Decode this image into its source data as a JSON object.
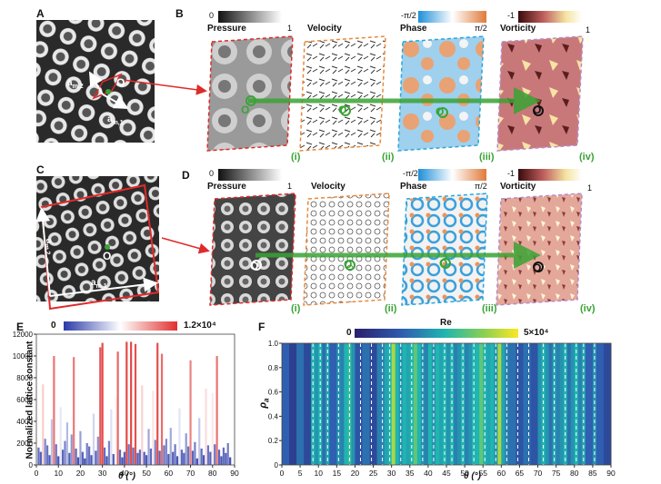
{
  "panels": {
    "A": "A",
    "B": "B",
    "C": "C",
    "D": "D",
    "E": "E",
    "F": "F"
  },
  "lattice_labels": {
    "a_m1": "a",
    "a_m2": "a",
    "sub1": "m,1",
    "sub2": "m,2",
    "origin": "O"
  },
  "field_maps": {
    "pressure": {
      "title": "Pressure",
      "min": "0",
      "max": "1"
    },
    "velocity": {
      "title": "Velocity"
    },
    "phase": {
      "title": "Phase",
      "min": "-π/2",
      "max": "π/2"
    },
    "vorticity": {
      "title": "Vorticity",
      "min": "-1",
      "max": "1"
    },
    "roman": [
      "(i)",
      "(ii)",
      "(iii)",
      "(iv)"
    ]
  },
  "colors": {
    "red": "#e02a2a",
    "green": "#3aa335",
    "orange": "#e8893a",
    "cyan": "#2aa7d8",
    "purple": "#b58bc8",
    "bar_red": "#e0302f",
    "bar_blue": "#3e52b5"
  },
  "chart_data": [
    {
      "type": "bar",
      "panel": "E",
      "ylabel": "Normalized lattice constant",
      "xlabel": "θ (°)",
      "xlim": [
        0,
        90
      ],
      "ylim": [
        0,
        12000
      ],
      "xticks": [
        "0",
        "10",
        "20",
        "30",
        "40",
        "50",
        "60",
        "70",
        "80",
        "90"
      ],
      "yticks": [
        "0",
        "2000",
        "4000",
        "6000",
        "8000",
        "10000",
        "12000"
      ],
      "colorbar": {
        "min": "0",
        "max": "1.2×10⁴"
      },
      "bars": [
        {
          "x": 1,
          "v": 1600
        },
        {
          "x": 2,
          "v": 1200
        },
        {
          "x": 3,
          "v": 7400
        },
        {
          "x": 4,
          "v": 2400
        },
        {
          "x": 5,
          "v": 1800
        },
        {
          "x": 6,
          "v": 900
        },
        {
          "x": 7,
          "v": 4200
        },
        {
          "x": 8,
          "v": 10000
        },
        {
          "x": 9,
          "v": 1900
        },
        {
          "x": 10,
          "v": 800
        },
        {
          "x": 11,
          "v": 5300
        },
        {
          "x": 12,
          "v": 1400
        },
        {
          "x": 13,
          "v": 2200
        },
        {
          "x": 14,
          "v": 3900
        },
        {
          "x": 15,
          "v": 1100
        },
        {
          "x": 16,
          "v": 2800
        },
        {
          "x": 17,
          "v": 9900
        },
        {
          "x": 18,
          "v": 1500
        },
        {
          "x": 19,
          "v": 700
        },
        {
          "x": 20,
          "v": 3100
        },
        {
          "x": 21,
          "v": 1200
        },
        {
          "x": 22,
          "v": 600
        },
        {
          "x": 23,
          "v": 2000
        },
        {
          "x": 24,
          "v": 1700
        },
        {
          "x": 25,
          "v": 900
        },
        {
          "x": 26,
          "v": 4700
        },
        {
          "x": 27,
          "v": 1300
        },
        {
          "x": 28,
          "v": 2600
        },
        {
          "x": 29,
          "v": 10800
        },
        {
          "x": 30,
          "v": 11200
        },
        {
          "x": 31,
          "v": 1600
        },
        {
          "x": 32,
          "v": 800
        },
        {
          "x": 33,
          "v": 2200
        },
        {
          "x": 34,
          "v": 5100
        },
        {
          "x": 35,
          "v": 1000
        },
        {
          "x": 36,
          "v": 6300
        },
        {
          "x": 37,
          "v": 10400
        },
        {
          "x": 38,
          "v": 1400
        },
        {
          "x": 39,
          "v": 700
        },
        {
          "x": 40,
          "v": 1200
        },
        {
          "x": 41,
          "v": 11300
        },
        {
          "x": 42,
          "v": 1900
        },
        {
          "x": 43,
          "v": 11300
        },
        {
          "x": 44,
          "v": 1600
        },
        {
          "x": 45,
          "v": 11100
        },
        {
          "x": 46,
          "v": 1100
        },
        {
          "x": 47,
          "v": 1400
        },
        {
          "x": 48,
          "v": 7300
        },
        {
          "x": 49,
          "v": 1200
        },
        {
          "x": 50,
          "v": 900
        },
        {
          "x": 51,
          "v": 3300
        },
        {
          "x": 52,
          "v": 1500
        },
        {
          "x": 53,
          "v": 6800
        },
        {
          "x": 54,
          "v": 2300
        },
        {
          "x": 55,
          "v": 11200
        },
        {
          "x": 56,
          "v": 1300
        },
        {
          "x": 57,
          "v": 10200
        },
        {
          "x": 58,
          "v": 1800
        },
        {
          "x": 59,
          "v": 2400
        },
        {
          "x": 60,
          "v": 1000
        },
        {
          "x": 61,
          "v": 3400
        },
        {
          "x": 62,
          "v": 1200
        },
        {
          "x": 63,
          "v": 1900
        },
        {
          "x": 64,
          "v": 800
        },
        {
          "x": 65,
          "v": 5200
        },
        {
          "x": 66,
          "v": 1400
        },
        {
          "x": 67,
          "v": 1100
        },
        {
          "x": 68,
          "v": 2900
        },
        {
          "x": 69,
          "v": 1700
        },
        {
          "x": 70,
          "v": 9600
        },
        {
          "x": 71,
          "v": 1300
        },
        {
          "x": 72,
          "v": 2100
        },
        {
          "x": 73,
          "v": 600
        },
        {
          "x": 74,
          "v": 4300
        },
        {
          "x": 75,
          "v": 1500
        },
        {
          "x": 76,
          "v": 900
        },
        {
          "x": 77,
          "v": 7000
        },
        {
          "x": 78,
          "v": 1800
        },
        {
          "x": 79,
          "v": 1200
        },
        {
          "x": 80,
          "v": 6600
        },
        {
          "x": 81,
          "v": 1900
        },
        {
          "x": 82,
          "v": 10000
        },
        {
          "x": 83,
          "v": 1400
        },
        {
          "x": 84,
          "v": 800
        },
        {
          "x": 85,
          "v": 1600
        },
        {
          "x": 86,
          "v": 1100
        },
        {
          "x": 87,
          "v": 2000
        },
        {
          "x": 88,
          "v": 700
        }
      ]
    },
    {
      "type": "heatmap",
      "panel": "F",
      "ylabel": "ρ_a",
      "ylabel_main": "ρ",
      "ylabel_sub": "a",
      "xlabel": "θ (°)",
      "colorbar_title": "Re",
      "colorbar": {
        "min": "0",
        "max": "5×10⁴"
      },
      "xlim": [
        0,
        90
      ],
      "ylim": [
        0,
        1.0
      ],
      "xticks": [
        "0",
        "5",
        "10",
        "15",
        "20",
        "25",
        "30",
        "35",
        "40",
        "45",
        "50",
        "55",
        "60",
        "65",
        "70",
        "75",
        "80",
        "85",
        "90"
      ],
      "yticks": [
        "0",
        "0.2",
        "0.4",
        "0.6",
        "0.8",
        "1.0"
      ],
      "dashed_lines_theta": [
        8.5,
        10.5,
        12.5,
        15.5,
        18.5,
        21.5,
        24.5,
        27.5,
        29.5,
        32.5,
        35.5,
        38.5,
        41.5,
        44.5,
        46.5,
        49.5,
        52.5,
        55.5,
        58.5,
        61.5,
        64.5,
        67.5,
        71.5,
        74.5,
        77.5,
        80.5,
        82.5,
        85.5
      ],
      "columns": [
        {
          "x0": 0,
          "x1": 2,
          "r": 0.3
        },
        {
          "x0": 2,
          "x1": 4,
          "r": 0.15
        },
        {
          "x0": 4,
          "x1": 6,
          "r": 0.35
        },
        {
          "x0": 6,
          "x1": 8,
          "r": 0.2
        },
        {
          "x0": 8,
          "x1": 9,
          "r": 0.55
        },
        {
          "x0": 9,
          "x1": 10,
          "r": 0.45
        },
        {
          "x0": 10,
          "x1": 11,
          "r": 0.55
        },
        {
          "x0": 11,
          "x1": 12,
          "r": 0.35
        },
        {
          "x0": 12,
          "x1": 13,
          "r": 0.5
        },
        {
          "x0": 13,
          "x1": 15,
          "r": 0.3
        },
        {
          "x0": 15,
          "x1": 16,
          "r": 0.45
        },
        {
          "x0": 16,
          "x1": 17,
          "r": 0.4
        },
        {
          "x0": 17,
          "x1": 18,
          "r": 0.55
        },
        {
          "x0": 18,
          "x1": 19,
          "r": 0.6
        },
        {
          "x0": 19,
          "x1": 20,
          "r": 0.45
        },
        {
          "x0": 20,
          "x1": 22,
          "r": 0.25
        },
        {
          "x0": 22,
          "x1": 24,
          "r": 0.35
        },
        {
          "x0": 24,
          "x1": 26,
          "r": 0.2
        },
        {
          "x0": 26,
          "x1": 28,
          "r": 0.4
        },
        {
          "x0": 28,
          "x1": 29,
          "r": 0.5
        },
        {
          "x0": 29,
          "x1": 30,
          "r": 0.55
        },
        {
          "x0": 30,
          "x1": 31,
          "r": 0.85
        },
        {
          "x0": 31,
          "x1": 32,
          "r": 0.55
        },
        {
          "x0": 32,
          "x1": 33,
          "r": 0.45
        },
        {
          "x0": 33,
          "x1": 34,
          "r": 0.55
        },
        {
          "x0": 34,
          "x1": 35,
          "r": 0.5
        },
        {
          "x0": 35,
          "x1": 36,
          "r": 0.55
        },
        {
          "x0": 36,
          "x1": 37,
          "r": 0.7
        },
        {
          "x0": 37,
          "x1": 38,
          "r": 0.55
        },
        {
          "x0": 38,
          "x1": 39,
          "r": 0.45
        },
        {
          "x0": 39,
          "x1": 40,
          "r": 0.4
        },
        {
          "x0": 40,
          "x1": 41,
          "r": 0.55
        },
        {
          "x0": 41,
          "x1": 42,
          "r": 0.45
        },
        {
          "x0": 42,
          "x1": 43,
          "r": 0.55
        },
        {
          "x0": 43,
          "x1": 44,
          "r": 0.5
        },
        {
          "x0": 44,
          "x1": 45,
          "r": 0.55
        },
        {
          "x0": 45,
          "x1": 46,
          "r": 0.45
        },
        {
          "x0": 46,
          "x1": 47,
          "r": 0.55
        },
        {
          "x0": 47,
          "x1": 48,
          "r": 0.4
        },
        {
          "x0": 48,
          "x1": 49,
          "r": 0.45
        },
        {
          "x0": 49,
          "x1": 50,
          "r": 0.55
        },
        {
          "x0": 50,
          "x1": 51,
          "r": 0.4
        },
        {
          "x0": 51,
          "x1": 52,
          "r": 0.45
        },
        {
          "x0": 52,
          "x1": 53,
          "r": 0.55
        },
        {
          "x0": 53,
          "x1": 54,
          "r": 0.55
        },
        {
          "x0": 54,
          "x1": 55,
          "r": 0.7
        },
        {
          "x0": 55,
          "x1": 56,
          "r": 0.55
        },
        {
          "x0": 56,
          "x1": 57,
          "r": 0.5
        },
        {
          "x0": 57,
          "x1": 58,
          "r": 0.55
        },
        {
          "x0": 58,
          "x1": 59,
          "r": 0.45
        },
        {
          "x0": 59,
          "x1": 60,
          "r": 0.85
        },
        {
          "x0": 60,
          "x1": 61,
          "r": 0.5
        },
        {
          "x0": 61,
          "x1": 62,
          "r": 0.4
        },
        {
          "x0": 62,
          "x1": 64,
          "r": 0.35
        },
        {
          "x0": 64,
          "x1": 66,
          "r": 0.25
        },
        {
          "x0": 66,
          "x1": 68,
          "r": 0.35
        },
        {
          "x0": 68,
          "x1": 70,
          "r": 0.25
        },
        {
          "x0": 70,
          "x1": 71,
          "r": 0.45
        },
        {
          "x0": 71,
          "x1": 72,
          "r": 0.55
        },
        {
          "x0": 72,
          "x1": 73,
          "r": 0.45
        },
        {
          "x0": 73,
          "x1": 74,
          "r": 0.35
        },
        {
          "x0": 74,
          "x1": 75,
          "r": 0.5
        },
        {
          "x0": 75,
          "x1": 76,
          "r": 0.4
        },
        {
          "x0": 76,
          "x1": 77,
          "r": 0.45
        },
        {
          "x0": 77,
          "x1": 78,
          "r": 0.55
        },
        {
          "x0": 78,
          "x1": 79,
          "r": 0.35
        },
        {
          "x0": 79,
          "x1": 80,
          "r": 0.45
        },
        {
          "x0": 80,
          "x1": 81,
          "r": 0.55
        },
        {
          "x0": 81,
          "x1": 82,
          "r": 0.4
        },
        {
          "x0": 82,
          "x1": 83,
          "r": 0.5
        },
        {
          "x0": 83,
          "x1": 85,
          "r": 0.3
        },
        {
          "x0": 85,
          "x1": 86,
          "r": 0.45
        },
        {
          "x0": 86,
          "x1": 88,
          "r": 0.3
        },
        {
          "x0": 88,
          "x1": 90,
          "r": 0.2
        }
      ]
    }
  ]
}
